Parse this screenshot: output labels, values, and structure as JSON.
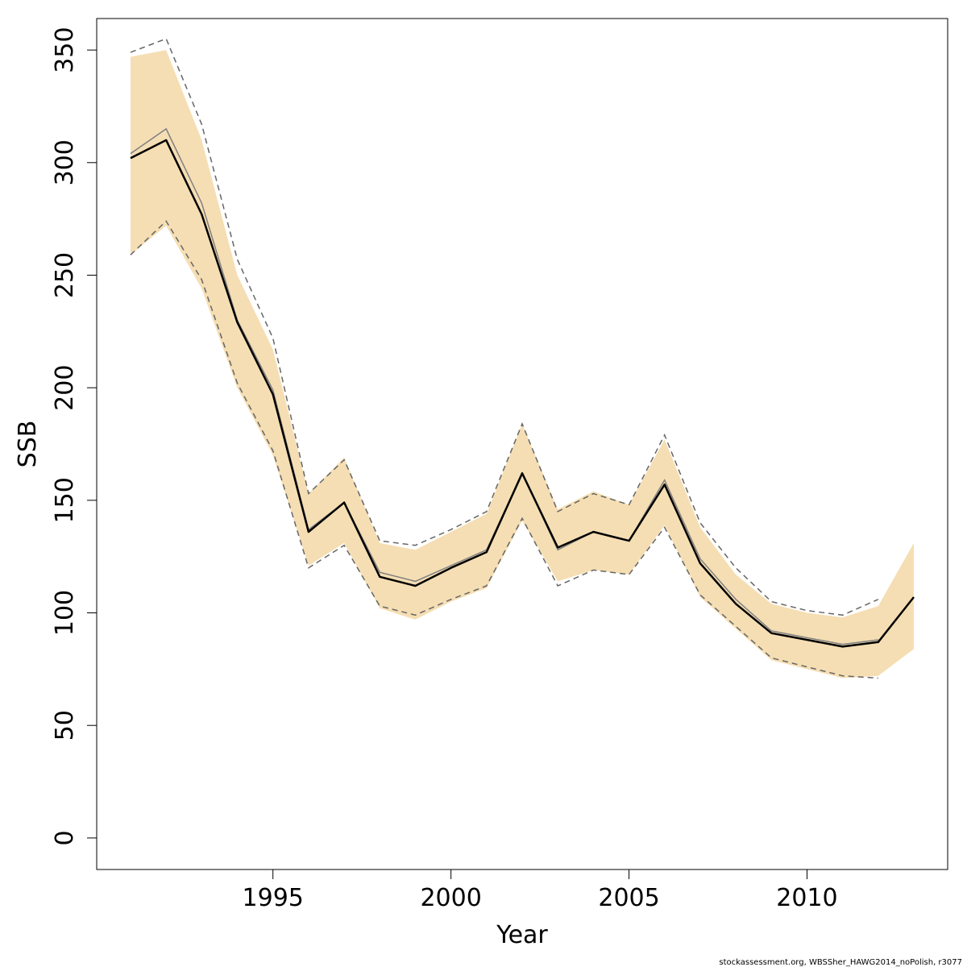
{
  "chart_data": {
    "type": "line",
    "xlabel": "Year",
    "ylabel": "SSB",
    "xlim": [
      1990.05,
      2013.95
    ],
    "ylim": [
      -14,
      364
    ],
    "x_ticks": [
      1995,
      2000,
      2005,
      2010
    ],
    "y_ticks": [
      0,
      50,
      100,
      150,
      200,
      250,
      300,
      350
    ],
    "x": [
      1991,
      1992,
      1993,
      1994,
      1995,
      1996,
      1997,
      1998,
      1999,
      2000,
      2001,
      2002,
      2003,
      2004,
      2005,
      2006,
      2007,
      2008,
      2009,
      2010,
      2011,
      2012,
      2013
    ],
    "series": [
      {
        "role": "confidence-band",
        "color": "#F5DEB3",
        "lower": [
          259,
          272,
          244,
          200,
          170,
          121,
          131,
          102,
          97,
          105,
          111,
          141,
          114,
          119,
          117,
          139,
          107,
          93,
          79,
          75,
          71,
          72,
          84
        ],
        "upper": [
          347,
          350,
          310,
          250,
          217,
          153,
          169,
          131,
          128,
          136,
          144,
          184,
          146,
          154,
          148,
          177,
          138,
          117,
          104,
          100,
          98,
          103,
          131
        ]
      },
      {
        "role": "estimate",
        "color": "#000000",
        "values": [
          302,
          310,
          277,
          229,
          197,
          136,
          149,
          116,
          112,
          120,
          127,
          162,
          129,
          136,
          132,
          157,
          122,
          104,
          91,
          88,
          85,
          87,
          107
        ]
      },
      {
        "role": "previous-estimate",
        "color": "#808080",
        "x": [
          1991,
          1992,
          1993,
          1994,
          1995,
          1996,
          1997,
          1998,
          1999,
          2000,
          2001,
          2002,
          2003,
          2004,
          2005,
          2006,
          2007,
          2008,
          2009,
          2010,
          2011,
          2012
        ],
        "values": [
          304,
          315,
          282,
          230,
          199,
          137,
          149,
          118,
          114,
          121,
          128,
          162,
          128,
          136,
          132,
          159,
          124,
          106,
          92,
          89,
          86,
          88
        ]
      },
      {
        "role": "previous-confidence-bounds",
        "color": "#666666",
        "style": "dashed",
        "x": [
          1991,
          1992,
          1993,
          1994,
          1995,
          1996,
          1997,
          1998,
          1999,
          2000,
          2001,
          2002,
          2003,
          2004,
          2005,
          2006,
          2007,
          2008,
          2009,
          2010,
          2011,
          2012
        ],
        "lower": [
          259,
          274,
          248,
          202,
          172,
          120,
          130,
          103,
          99,
          106,
          112,
          142,
          112,
          119,
          117,
          138,
          108,
          94,
          80,
          76,
          72,
          71
        ],
        "upper": [
          349,
          355,
          317,
          257,
          222,
          153,
          168,
          132,
          130,
          137,
          145,
          184,
          145,
          153,
          148,
          179,
          140,
          120,
          105,
          101,
          99,
          106
        ]
      }
    ],
    "grid": false,
    "legend": "none"
  },
  "footer_text": "stockassessment.org, WBSSher_HAWG2014_noPolish, r3077"
}
